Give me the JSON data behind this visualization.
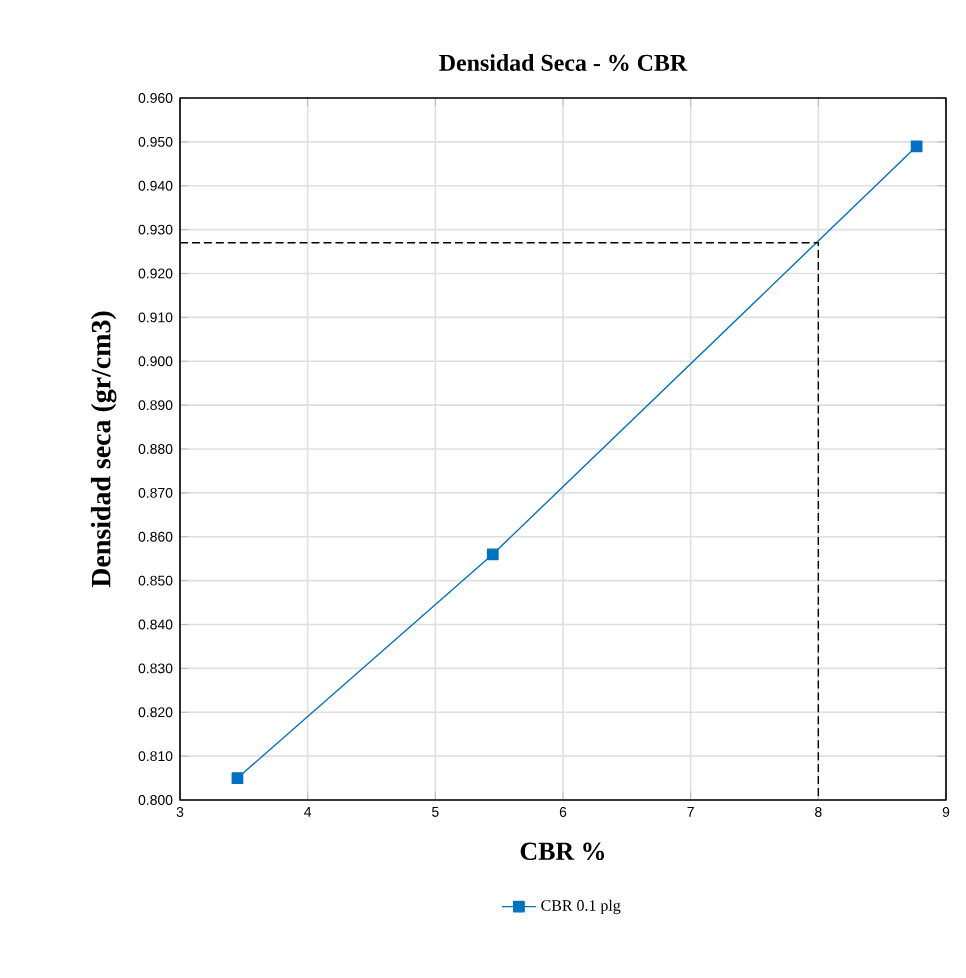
{
  "chart_data": {
    "type": "line",
    "title": "Densidad Seca - % CBR",
    "xlabel": "CBR %",
    "ylabel": "Densidad seca (gr/cm3)",
    "xlim": [
      3,
      9
    ],
    "xticks": [
      3,
      4,
      5,
      6,
      7,
      8,
      9
    ],
    "ylim": [
      0.8,
      0.96
    ],
    "yticks": [
      {
        "value": 0.8,
        "label": "0.800"
      },
      {
        "value": 0.81,
        "label": "0.810"
      },
      {
        "value": 0.82,
        "label": "0.820"
      },
      {
        "value": 0.83,
        "label": "0.830"
      },
      {
        "value": 0.84,
        "label": "0.840"
      },
      {
        "value": 0.85,
        "label": "0.850"
      },
      {
        "value": 0.86,
        "label": "0.860"
      },
      {
        "value": 0.87,
        "label": "0.870"
      },
      {
        "value": 0.88,
        "label": "0.880"
      },
      {
        "value": 0.89,
        "label": "0.890"
      },
      {
        "value": 0.9,
        "label": "0.900"
      },
      {
        "value": 0.91,
        "label": "0.910"
      },
      {
        "value": 0.92,
        "label": "0.920"
      },
      {
        "value": 0.93,
        "label": "0.930"
      },
      {
        "value": 0.94,
        "label": "0.940"
      },
      {
        "value": 0.95,
        "label": "0.950"
      },
      {
        "value": 0.96,
        "label": "0.960"
      }
    ],
    "grid": true,
    "legend": "bottom",
    "series": [
      {
        "name": "CBR 0.1 plg",
        "color": "#0070c0",
        "x": [
          3.45,
          5.45,
          8.77
        ],
        "values": [
          0.805,
          0.856,
          0.949
        ],
        "marker": "square",
        "line_style": "solid"
      },
      {
        "color": "#000000",
        "x": [
          3,
          8,
          8
        ],
        "values": [
          0.927,
          0.927,
          0.8
        ],
        "marker": "none",
        "line_style": "dashed"
      }
    ]
  }
}
